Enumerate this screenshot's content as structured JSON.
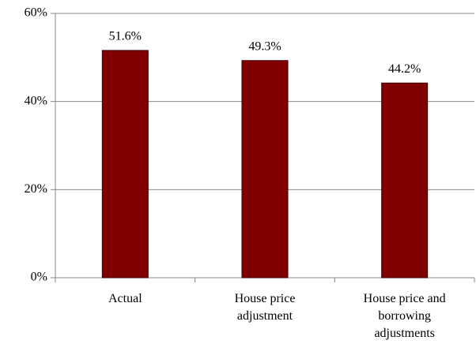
{
  "chart_data": {
    "type": "bar",
    "categories": [
      "Actual",
      "House price\nadjustment",
      "House price and\nborrowing\nadjustments"
    ],
    "values": [
      51.6,
      49.3,
      44.2
    ],
    "value_labels": [
      "51.6%",
      "49.3%",
      "44.2%"
    ],
    "color": "#800000",
    "ylim": [
      0,
      60
    ],
    "yticks": [
      {
        "value": 0,
        "label": "0%"
      },
      {
        "value": 20,
        "label": "20%"
      },
      {
        "value": 40,
        "label": "40%"
      },
      {
        "value": 60,
        "label": "60%"
      }
    ],
    "grid": true
  }
}
